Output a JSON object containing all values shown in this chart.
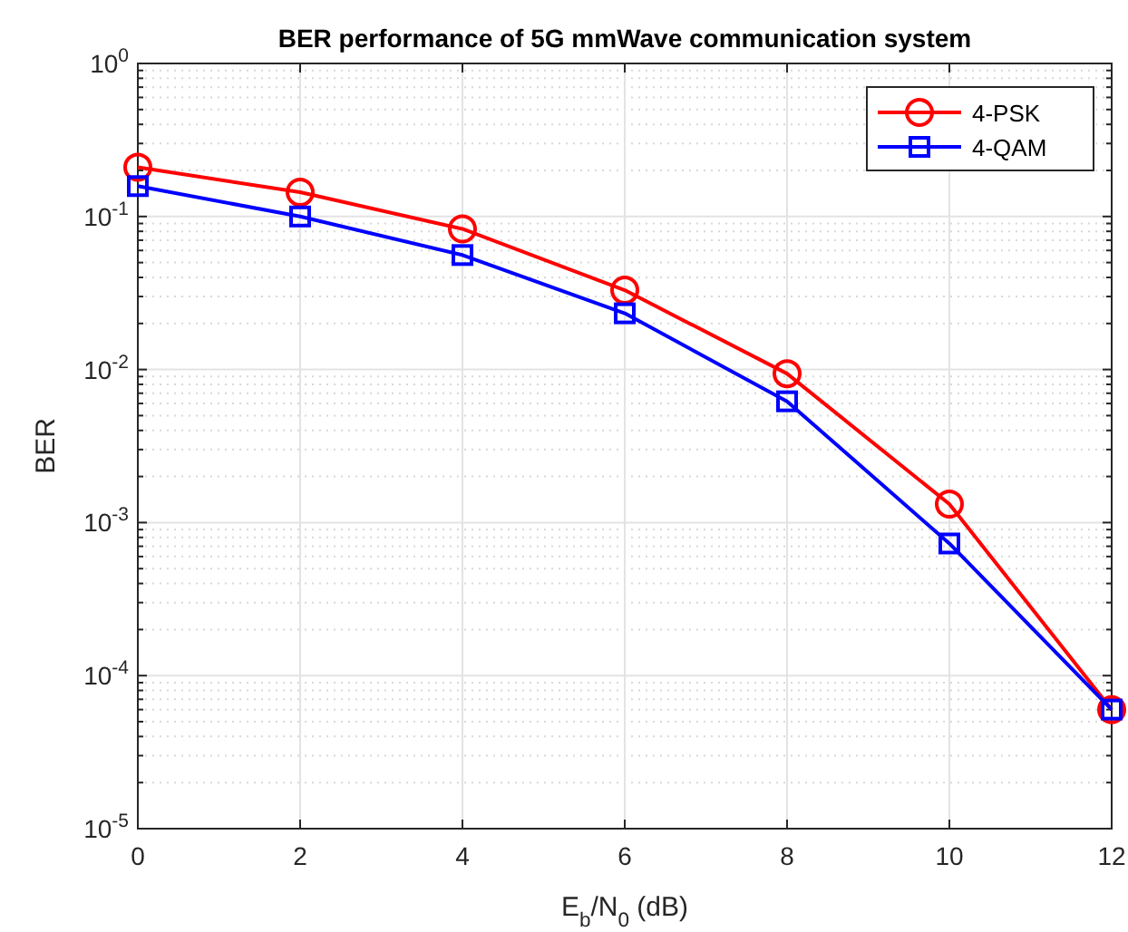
{
  "chart_data": {
    "type": "line",
    "title": "BER performance of 5G mmWave communication system",
    "xlabel": "E$_{b}$/N$_{0}$ (dB)",
    "ylabel": "BER",
    "x": [
      0,
      2,
      4,
      6,
      8,
      10,
      12
    ],
    "series": [
      {
        "name": "4-PSK",
        "color": "#ff0000",
        "marker": "circle",
        "values": [
          0.21,
          0.144,
          0.083,
          0.033,
          0.0094,
          0.00132,
          6e-05
        ]
      },
      {
        "name": "4-QAM",
        "color": "#0000ff",
        "marker": "square",
        "values": [
          0.158,
          0.1,
          0.056,
          0.0233,
          0.0062,
          0.00073,
          6e-05
        ]
      }
    ],
    "log": "y",
    "xlim": [
      0,
      12
    ],
    "xticks": [
      0,
      2,
      4,
      6,
      8,
      10,
      12
    ],
    "ylim": [
      1e-05,
      1
    ],
    "yticks": [
      {
        "value": 1,
        "label": "10$^{0}$"
      },
      {
        "value": 0.1,
        "label": "10$^{-1}$"
      },
      {
        "value": 0.01,
        "label": "10$^{-2}$"
      },
      {
        "value": 0.001,
        "label": "10$^{-3}$"
      },
      {
        "value": 0.0001,
        "label": "10$^{-4}$"
      },
      {
        "value": 1e-05,
        "label": "10$^{-5}$"
      }
    ],
    "grid": true,
    "legend": "top right",
    "line_style": "solid"
  }
}
